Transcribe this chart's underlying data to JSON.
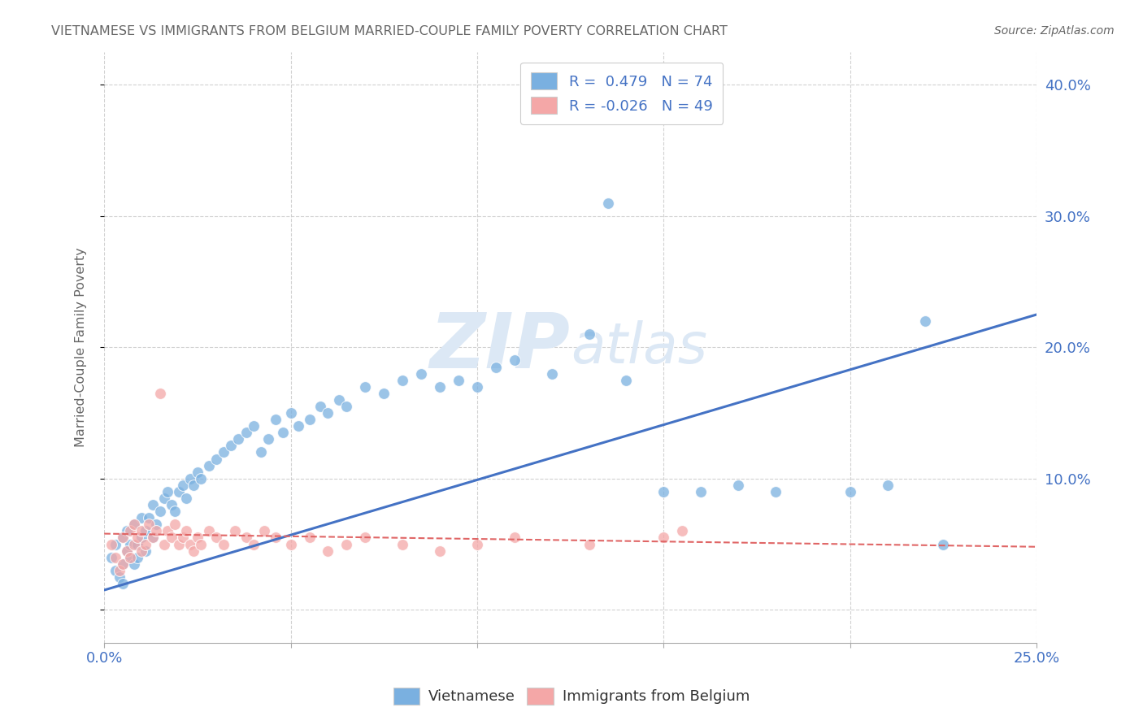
{
  "title": "VIETNAMESE VS IMMIGRANTS FROM BELGIUM MARRIED-COUPLE FAMILY POVERTY CORRELATION CHART",
  "source": "Source: ZipAtlas.com",
  "ylabel": "Married-Couple Family Poverty",
  "xlim": [
    0.0,
    0.25
  ],
  "ylim": [
    -0.025,
    0.425
  ],
  "xtick_vals": [
    0.0,
    0.05,
    0.1,
    0.15,
    0.2,
    0.25
  ],
  "xtick_labels": [
    "0.0%",
    "",
    "",
    "",
    "",
    "25.0%"
  ],
  "ytick_vals": [
    0.0,
    0.1,
    0.2,
    0.3,
    0.4
  ],
  "ytick_labels": [
    "",
    "10.0%",
    "20.0%",
    "30.0%",
    "40.0%"
  ],
  "background_color": "#ffffff",
  "grid_color": "#cccccc",
  "blue_color": "#7ab0e0",
  "pink_color": "#f4a7a7",
  "blue_line_color": "#4472c4",
  "pink_line_color": "#e06666",
  "title_color": "#666666",
  "axis_color": "#4472c4",
  "watermark_color": "#dce8f5",
  "viet_x": [
    0.002,
    0.003,
    0.003,
    0.004,
    0.005,
    0.005,
    0.005,
    0.006,
    0.006,
    0.007,
    0.007,
    0.008,
    0.008,
    0.009,
    0.009,
    0.01,
    0.01,
    0.011,
    0.011,
    0.012,
    0.013,
    0.013,
    0.014,
    0.015,
    0.016,
    0.017,
    0.018,
    0.019,
    0.02,
    0.021,
    0.022,
    0.023,
    0.024,
    0.025,
    0.026,
    0.028,
    0.03,
    0.032,
    0.034,
    0.036,
    0.038,
    0.04,
    0.042,
    0.044,
    0.046,
    0.048,
    0.05,
    0.052,
    0.055,
    0.058,
    0.06,
    0.063,
    0.065,
    0.07,
    0.075,
    0.08,
    0.085,
    0.09,
    0.095,
    0.1,
    0.105,
    0.11,
    0.12,
    0.13,
    0.135,
    0.14,
    0.15,
    0.16,
    0.17,
    0.18,
    0.2,
    0.21,
    0.22,
    0.225
  ],
  "viet_y": [
    0.04,
    0.05,
    0.03,
    0.025,
    0.055,
    0.035,
    0.02,
    0.045,
    0.06,
    0.04,
    0.05,
    0.035,
    0.065,
    0.05,
    0.04,
    0.055,
    0.07,
    0.045,
    0.06,
    0.07,
    0.055,
    0.08,
    0.065,
    0.075,
    0.085,
    0.09,
    0.08,
    0.075,
    0.09,
    0.095,
    0.085,
    0.1,
    0.095,
    0.105,
    0.1,
    0.11,
    0.115,
    0.12,
    0.125,
    0.13,
    0.135,
    0.14,
    0.12,
    0.13,
    0.145,
    0.135,
    0.15,
    0.14,
    0.145,
    0.155,
    0.15,
    0.16,
    0.155,
    0.17,
    0.165,
    0.175,
    0.18,
    0.17,
    0.175,
    0.17,
    0.185,
    0.19,
    0.18,
    0.21,
    0.31,
    0.175,
    0.09,
    0.09,
    0.095,
    0.09,
    0.09,
    0.095,
    0.22,
    0.05
  ],
  "belg_x": [
    0.002,
    0.003,
    0.004,
    0.005,
    0.005,
    0.006,
    0.007,
    0.007,
    0.008,
    0.008,
    0.009,
    0.01,
    0.01,
    0.011,
    0.012,
    0.013,
    0.014,
    0.015,
    0.016,
    0.017,
    0.018,
    0.019,
    0.02,
    0.021,
    0.022,
    0.023,
    0.024,
    0.025,
    0.026,
    0.028,
    0.03,
    0.032,
    0.035,
    0.038,
    0.04,
    0.043,
    0.046,
    0.05,
    0.055,
    0.06,
    0.065,
    0.07,
    0.08,
    0.09,
    0.1,
    0.11,
    0.13,
    0.15,
    0.155
  ],
  "belg_y": [
    0.05,
    0.04,
    0.03,
    0.055,
    0.035,
    0.045,
    0.06,
    0.04,
    0.05,
    0.065,
    0.055,
    0.06,
    0.045,
    0.05,
    0.065,
    0.055,
    0.06,
    0.165,
    0.05,
    0.06,
    0.055,
    0.065,
    0.05,
    0.055,
    0.06,
    0.05,
    0.045,
    0.055,
    0.05,
    0.06,
    0.055,
    0.05,
    0.06,
    0.055,
    0.05,
    0.06,
    0.055,
    0.05,
    0.055,
    0.045,
    0.05,
    0.055,
    0.05,
    0.045,
    0.05,
    0.055,
    0.05,
    0.055,
    0.06
  ],
  "viet_line_x": [
    0.0,
    0.25
  ],
  "viet_line_y": [
    0.015,
    0.225
  ],
  "belg_line_x": [
    0.0,
    0.25
  ],
  "belg_line_y": [
    0.058,
    0.048
  ]
}
